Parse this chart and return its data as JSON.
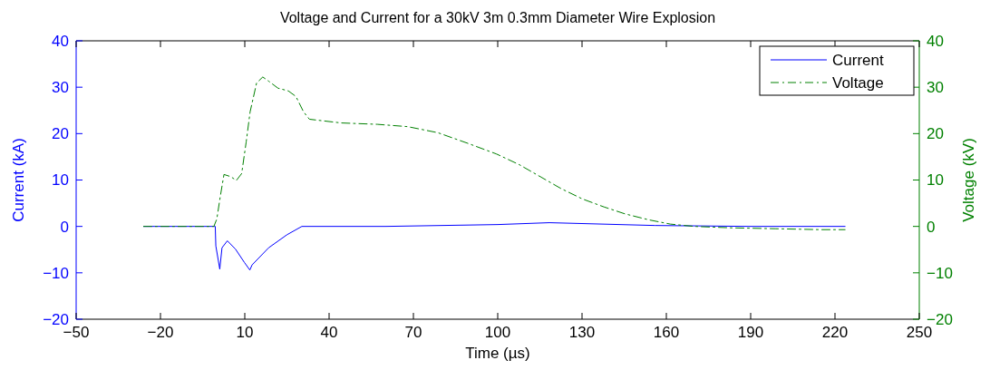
{
  "chart_data": {
    "type": "line",
    "title": "Voltage and Current for a 30kV 3m 0.3mm Diameter Wire Explosion",
    "xlabel": "Time (µs)",
    "ylabel": "Current (kA)",
    "y2label": "Voltage (kV)",
    "xlim": [
      -50,
      250
    ],
    "xticks": [
      -50,
      -20,
      10,
      40,
      70,
      100,
      130,
      160,
      190,
      220,
      250
    ],
    "ylim": [
      -20,
      40
    ],
    "yticks": [
      -20,
      -10,
      0,
      10,
      20,
      30,
      40
    ],
    "y2lim": [
      -20,
      40
    ],
    "y2ticks": [
      -20,
      -10,
      0,
      10,
      20,
      30,
      40
    ],
    "legend": "top right",
    "grid": false,
    "series": [
      {
        "name": "Current",
        "color": "#0000ff",
        "line_style": "solid",
        "x": [
          -26,
          -0.5,
          -0.3,
          1.1,
          1.9,
          3.8,
          6.7,
          9.9,
          11.8,
          12.6,
          18.5,
          25,
          30.3,
          60,
          100,
          118.4,
          156,
          190,
          223.6
        ],
        "values": [
          0,
          0,
          -4.2,
          -9.2,
          -4.6,
          -3.1,
          -4.9,
          -7.8,
          -9.4,
          -8.3,
          -4.6,
          -1.8,
          0,
          0,
          0.4,
          0.8,
          0.2,
          0,
          0
        ]
      },
      {
        "name": "Voltage",
        "color": "#008000",
        "line_style": "dashed",
        "axis": "y2",
        "x": [
          -26,
          -1,
          0.05,
          1.3,
          2.6,
          5.1,
          7,
          8.9,
          10.5,
          11.9,
          14.2,
          16.4,
          18.5,
          21.8,
          25.5,
          28.2,
          30.9,
          33,
          44.3,
          57.2,
          68,
          78.7,
          89.4,
          99.6,
          107.7,
          115.2,
          122.7,
          130.2,
          137.8,
          145.3,
          153.9,
          161.4,
          170,
          182.9,
          199,
          215.1,
          223.6
        ],
        "values": [
          0,
          0,
          1.6,
          6.5,
          11.2,
          10.7,
          9.9,
          11.4,
          18.2,
          24.7,
          30.9,
          32.2,
          31.3,
          29.8,
          29.2,
          28,
          24.7,
          23.1,
          22.3,
          22,
          21.5,
          20.2,
          17.9,
          15.6,
          13.3,
          10.7,
          8.1,
          5.9,
          4.2,
          2.7,
          1.4,
          0.5,
          0,
          -0.3,
          -0.5,
          -0.7,
          -0.7
        ]
      }
    ]
  }
}
